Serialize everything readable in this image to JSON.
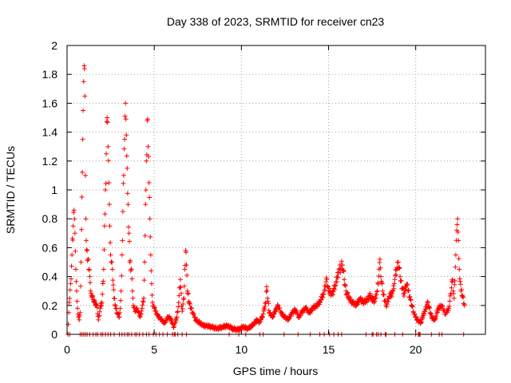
{
  "chart_data": {
    "type": "scatter",
    "title": "Day 338 of 2023, SRMTID for receiver cn23",
    "xlabel": "GPS time / hours",
    "ylabel": "SRMTID / TECUs",
    "xlim": [
      0,
      24
    ],
    "ylim": [
      0,
      2
    ],
    "xticks": [
      0,
      5,
      10,
      15,
      20
    ],
    "yticks": [
      0,
      0.2,
      0.4,
      0.6,
      0.8,
      1,
      1.2,
      1.4,
      1.6,
      1.8,
      2
    ],
    "ytick_labels": [
      "0",
      "0.2",
      "0.4",
      "0.6",
      "0.8",
      "1",
      "1.2",
      "1.4",
      "1.6",
      "1.8",
      "2"
    ],
    "grid": true,
    "marker": "+",
    "series": [
      {
        "name": "SRMTID",
        "color": "#ff0000",
        "points": [
          [
            0.05,
            0.0
          ],
          [
            0.12,
            0.22
          ],
          [
            0.2,
            0.35
          ],
          [
            0.28,
            0.55
          ],
          [
            0.35,
            0.75
          ],
          [
            0.4,
            0.86
          ],
          [
            0.45,
            0.7
          ],
          [
            0.5,
            0.45
          ],
          [
            0.55,
            0.3
          ],
          [
            0.6,
            0.18
          ],
          [
            0.65,
            0.12
          ],
          [
            0.7,
            0.1
          ],
          [
            0.75,
            0.15
          ],
          [
            0.8,
            0.5
          ],
          [
            0.85,
            0.95
          ],
          [
            0.9,
            1.35
          ],
          [
            0.92,
            1.55
          ],
          [
            0.95,
            1.75
          ],
          [
            0.98,
            1.86
          ],
          [
            1.02,
            1.65
          ],
          [
            1.05,
            1.1
          ],
          [
            1.08,
            0.8
          ],
          [
            1.1,
            0.65
          ],
          [
            1.15,
            0.58
          ],
          [
            1.2,
            0.52
          ],
          [
            1.25,
            0.45
          ],
          [
            1.3,
            0.4
          ],
          [
            1.35,
            0.3
          ],
          [
            1.4,
            0.27
          ],
          [
            1.5,
            0.24
          ],
          [
            1.6,
            0.22
          ],
          [
            1.7,
            0.2
          ],
          [
            1.8,
            0.1
          ],
          [
            1.9,
            0.18
          ],
          [
            2.0,
            0.22
          ],
          [
            2.1,
            0.45
          ],
          [
            2.15,
            0.75
          ],
          [
            2.2,
            1.0
          ],
          [
            2.25,
            1.25
          ],
          [
            2.3,
            1.5
          ],
          [
            2.35,
            1.3
          ],
          [
            2.4,
            1.05
          ],
          [
            2.45,
            0.75
          ],
          [
            2.5,
            0.55
          ],
          [
            2.6,
            0.45
          ],
          [
            2.7,
            0.25
          ],
          [
            2.8,
            0.18
          ],
          [
            2.9,
            0.14
          ],
          [
            3.0,
            0.12
          ],
          [
            3.05,
            0.18
          ],
          [
            3.1,
            0.3
          ],
          [
            3.15,
            0.55
          ],
          [
            3.2,
            0.85
          ],
          [
            3.25,
            1.1
          ],
          [
            3.3,
            1.35
          ],
          [
            3.35,
            1.6
          ],
          [
            3.4,
            1.38
          ],
          [
            3.45,
            1.15
          ],
          [
            3.5,
            0.9
          ],
          [
            3.55,
            0.7
          ],
          [
            3.6,
            0.5
          ],
          [
            3.7,
            0.45
          ],
          [
            3.75,
            0.3
          ],
          [
            3.8,
            0.2
          ],
          [
            3.9,
            0.16
          ],
          [
            4.0,
            0.18
          ],
          [
            4.1,
            0.15
          ],
          [
            4.2,
            0.12
          ],
          [
            4.3,
            0.18
          ],
          [
            4.4,
            0.25
          ],
          [
            4.45,
            0.5
          ],
          [
            4.5,
            0.9
          ],
          [
            4.55,
            1.2
          ],
          [
            4.6,
            1.48
          ],
          [
            4.65,
            1.3
          ],
          [
            4.7,
            1.05
          ],
          [
            4.75,
            0.8
          ],
          [
            4.8,
            0.55
          ],
          [
            4.85,
            0.35
          ],
          [
            4.9,
            0.22
          ],
          [
            5.0,
            0.18
          ],
          [
            5.2,
            0.13
          ],
          [
            5.4,
            0.1
          ],
          [
            5.6,
            0.08
          ],
          [
            5.8,
            0.12
          ],
          [
            6.0,
            0.1
          ],
          [
            6.1,
            0.05
          ],
          [
            6.2,
            0.08
          ],
          [
            6.3,
            0.12
          ],
          [
            6.4,
            0.22
          ],
          [
            6.5,
            0.38
          ],
          [
            6.6,
            0.16
          ],
          [
            6.7,
            0.25
          ],
          [
            6.75,
            0.45
          ],
          [
            6.8,
            0.58
          ],
          [
            6.85,
            0.48
          ],
          [
            6.9,
            0.3
          ],
          [
            7.0,
            0.22
          ],
          [
            7.2,
            0.15
          ],
          [
            7.4,
            0.1
          ],
          [
            7.6,
            0.08
          ],
          [
            7.8,
            0.06
          ],
          [
            8.0,
            0.06
          ],
          [
            8.3,
            0.05
          ],
          [
            8.6,
            0.04
          ],
          [
            8.9,
            0.05
          ],
          [
            9.2,
            0.06
          ],
          [
            9.5,
            0.04
          ],
          [
            9.8,
            0.03
          ],
          [
            10.1,
            0.05
          ],
          [
            10.4,
            0.04
          ],
          [
            10.7,
            0.07
          ],
          [
            10.9,
            0.1
          ],
          [
            11.0,
            0.08
          ],
          [
            11.2,
            0.12
          ],
          [
            11.4,
            0.22
          ],
          [
            11.45,
            0.33
          ],
          [
            11.5,
            0.25
          ],
          [
            11.6,
            0.15
          ],
          [
            11.8,
            0.12
          ],
          [
            12.0,
            0.18
          ],
          [
            12.1,
            0.2
          ],
          [
            12.3,
            0.14
          ],
          [
            12.5,
            0.12
          ],
          [
            12.7,
            0.1
          ],
          [
            12.9,
            0.15
          ],
          [
            13.1,
            0.17
          ],
          [
            13.3,
            0.12
          ],
          [
            13.5,
            0.16
          ],
          [
            13.7,
            0.18
          ],
          [
            13.9,
            0.15
          ],
          [
            14.1,
            0.18
          ],
          [
            14.3,
            0.2
          ],
          [
            14.5,
            0.22
          ],
          [
            14.7,
            0.28
          ],
          [
            14.9,
            0.38
          ],
          [
            15.0,
            0.3
          ],
          [
            15.2,
            0.28
          ],
          [
            15.4,
            0.34
          ],
          [
            15.6,
            0.45
          ],
          [
            15.8,
            0.48
          ],
          [
            15.9,
            0.38
          ],
          [
            16.0,
            0.3
          ],
          [
            16.2,
            0.24
          ],
          [
            16.4,
            0.22
          ],
          [
            16.6,
            0.2
          ],
          [
            16.8,
            0.25
          ],
          [
            17.0,
            0.22
          ],
          [
            17.2,
            0.24
          ],
          [
            17.4,
            0.27
          ],
          [
            17.6,
            0.22
          ],
          [
            17.8,
            0.3
          ],
          [
            17.9,
            0.45
          ],
          [
            17.95,
            0.52
          ],
          [
            18.0,
            0.4
          ],
          [
            18.1,
            0.3
          ],
          [
            18.3,
            0.2
          ],
          [
            18.5,
            0.26
          ],
          [
            18.7,
            0.3
          ],
          [
            18.8,
            0.38
          ],
          [
            18.9,
            0.45
          ],
          [
            19.0,
            0.5
          ],
          [
            19.1,
            0.4
          ],
          [
            19.3,
            0.28
          ],
          [
            19.5,
            0.34
          ],
          [
            19.7,
            0.24
          ],
          [
            19.9,
            0.14
          ],
          [
            20.1,
            0.1
          ],
          [
            20.3,
            0.08
          ],
          [
            20.5,
            0.16
          ],
          [
            20.7,
            0.22
          ],
          [
            20.9,
            0.12
          ],
          [
            21.1,
            0.1
          ],
          [
            21.3,
            0.18
          ],
          [
            21.5,
            0.2
          ],
          [
            21.7,
            0.14
          ],
          [
            21.9,
            0.18
          ],
          [
            22.0,
            0.28
          ],
          [
            22.1,
            0.38
          ],
          [
            22.2,
            0.25
          ],
          [
            22.3,
            0.55
          ],
          [
            22.35,
            0.72
          ],
          [
            22.4,
            0.8
          ],
          [
            22.45,
            0.65
          ],
          [
            22.5,
            0.45
          ],
          [
            22.6,
            0.3
          ],
          [
            22.7,
            0.26
          ],
          [
            22.8,
            0.2
          ]
        ],
        "zero_points": [
          0.15,
          0.75,
          0.85,
          0.95,
          1.05,
          1.15,
          1.3,
          1.5,
          1.65,
          1.75,
          1.95,
          2.05,
          2.2,
          2.35,
          2.5,
          2.7,
          3.0,
          3.15,
          3.3,
          3.45,
          3.55,
          3.7,
          3.9,
          4.0,
          4.15,
          4.35,
          4.55,
          4.7,
          4.95,
          5.1,
          5.3,
          5.5,
          5.75,
          6.05,
          6.15,
          6.2,
          6.35,
          6.6,
          6.85,
          9.3,
          9.85,
          10.25,
          11.05,
          11.25,
          12.45,
          13.25,
          13.95,
          14.5,
          14.75,
          15.05,
          15.3,
          15.55,
          15.75,
          17.15,
          17.5,
          17.55,
          17.75,
          17.85,
          18.0,
          18.25,
          18.3,
          18.8,
          19.25,
          20.0,
          20.15,
          20.2,
          20.25,
          20.9,
          21.35,
          21.5,
          22.75
        ]
      }
    ]
  }
}
